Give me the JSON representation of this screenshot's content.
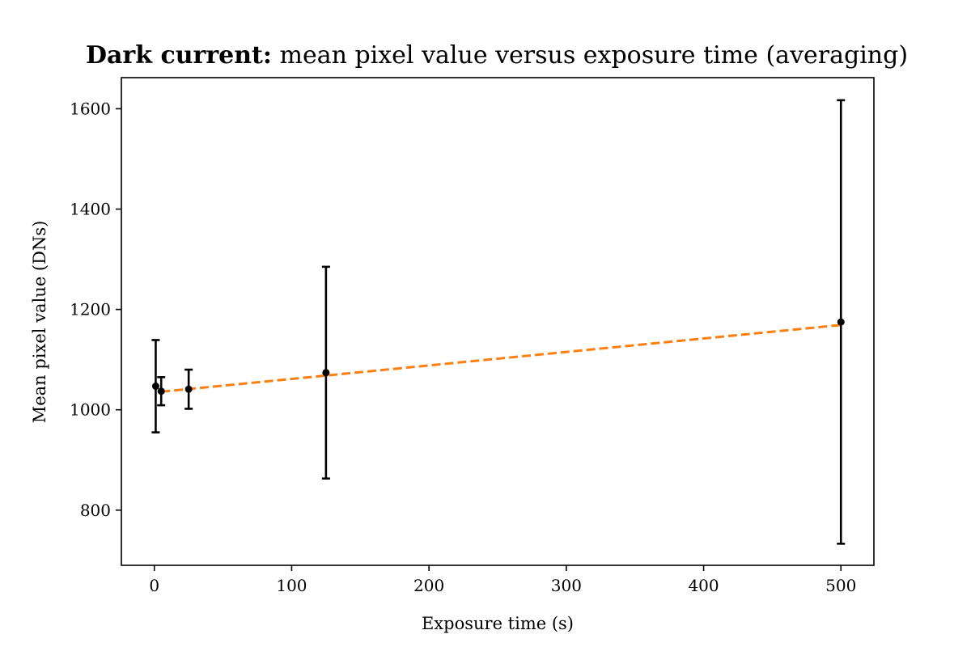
{
  "chart_data": {
    "type": "scatter",
    "title_bold": "Dark current:",
    "title_rest": " mean pixel value versus exposure time (averaging)",
    "xlabel": "Exposure time (s)",
    "ylabel": "Mean pixel value (DNs)",
    "xlim": [
      -24,
      524
    ],
    "ylim": [
      690,
      1662
    ],
    "x_ticks": [
      0,
      100,
      200,
      300,
      400,
      500
    ],
    "y_ticks": [
      800,
      1000,
      1200,
      1400,
      1600
    ],
    "grid": false,
    "points": [
      {
        "x": 1,
        "y": 1047,
        "err": 92
      },
      {
        "x": 5,
        "y": 1037,
        "err": 28
      },
      {
        "x": 25,
        "y": 1041,
        "err": 39
      },
      {
        "x": 125,
        "y": 1074,
        "err": 211
      },
      {
        "x": 500,
        "y": 1175,
        "err": 442
      }
    ],
    "fit_line": {
      "x": [
        5,
        500
      ],
      "y": [
        1036,
        1169
      ]
    },
    "colors": {
      "points": "#000000",
      "fit": "#ff7f0e"
    }
  }
}
